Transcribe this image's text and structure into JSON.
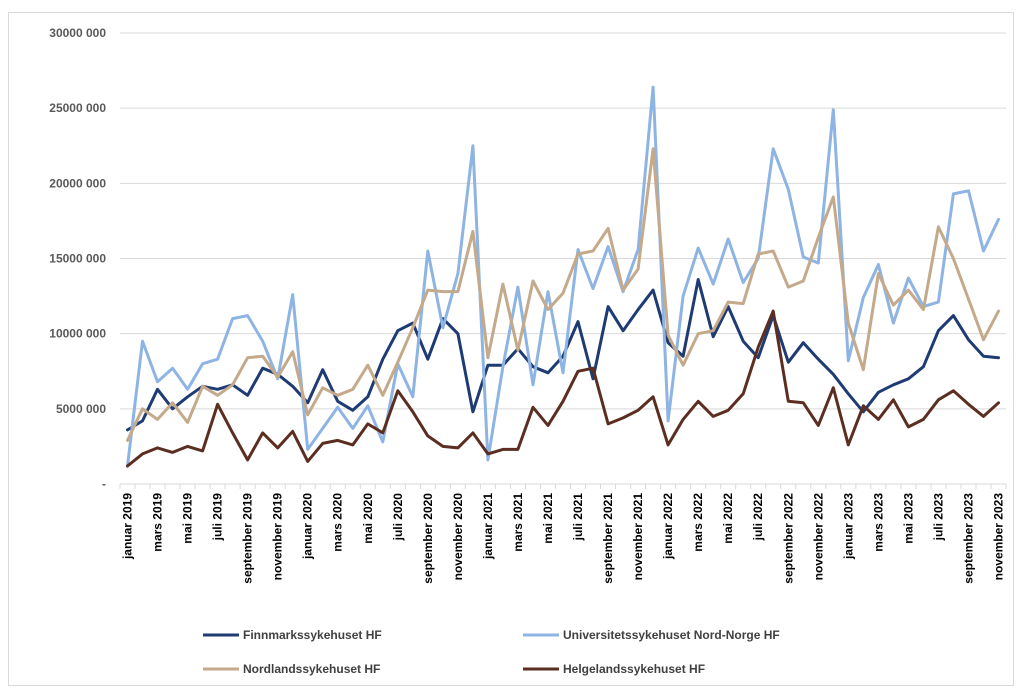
{
  "chart_data": {
    "type": "line",
    "title": "",
    "xlabel": "",
    "ylabel": "",
    "ylim": [
      0,
      30000000
    ],
    "yticks": [
      {
        "value": 0,
        "label": "-"
      },
      {
        "value": 5000000,
        "label": "5000 000"
      },
      {
        "value": 10000000,
        "label": "10000 000"
      },
      {
        "value": 15000000,
        "label": "15000 000"
      },
      {
        "value": 20000000,
        "label": "20000 000"
      },
      {
        "value": 25000000,
        "label": "25000 000"
      },
      {
        "value": 30000000,
        "label": "30000 000"
      }
    ],
    "grid": "horizontal",
    "legend_position": "bottom",
    "x": [
      "januar 2019",
      "februar 2019",
      "mars 2019",
      "april 2019",
      "mai 2019",
      "juni 2019",
      "juli 2019",
      "august 2019",
      "september 2019",
      "oktober 2019",
      "november 2019",
      "desember 2019",
      "januar 2020",
      "februar 2020",
      "mars 2020",
      "april 2020",
      "mai 2020",
      "juni 2020",
      "juli 2020",
      "august 2020",
      "september 2020",
      "oktober 2020",
      "november 2020",
      "desember 2020",
      "januar 2021",
      "februar 2021",
      "mars 2021",
      "april 2021",
      "mai 2021",
      "juni 2021",
      "juli 2021",
      "august 2021",
      "september 2021",
      "oktober 2021",
      "november 2021",
      "desember 2021",
      "januar 2022",
      "februar 2022",
      "mars 2022",
      "april 2022",
      "mai 2022",
      "juni 2022",
      "juli 2022",
      "august 2022",
      "september 2022",
      "oktober 2022",
      "november 2022",
      "desember 2022",
      "januar 2023",
      "februar 2023",
      "mars 2023",
      "april 2023",
      "mai 2023",
      "juni 2023",
      "juli 2023",
      "august 2023",
      "september 2023",
      "oktober 2023",
      "november 2023"
    ],
    "x_tick_labels": [
      "januar 2019",
      "mars 2019",
      "mai 2019",
      "juli 2019",
      "september 2019",
      "november 2019",
      "januar 2020",
      "mars 2020",
      "mai 2020",
      "juli 2020",
      "september 2020",
      "november 2020",
      "januar 2021",
      "mars 2021",
      "mai 2021",
      "juli 2021",
      "september 2021",
      "november 2021",
      "januar 2022",
      "mars 2022",
      "mai 2022",
      "juli 2022",
      "september 2022",
      "november 2022",
      "januar 2023",
      "mars 2023",
      "mai 2023",
      "juli 2023",
      "september 2023",
      "november 2023"
    ],
    "series": [
      {
        "name": "Finnmarkssykehuset HF",
        "color": "#1f3b73",
        "values": [
          3600000,
          4200000,
          6300000,
          5000000,
          5800000,
          6500000,
          6300000,
          6600000,
          5900000,
          7700000,
          7300000,
          6500000,
          5400000,
          7600000,
          5500000,
          4900000,
          5800000,
          8300000,
          10200000,
          10700000,
          8300000,
          11000000,
          10000000,
          4800000,
          7900000,
          7900000,
          9000000,
          7800000,
          7400000,
          8500000,
          10800000,
          7000000,
          11800000,
          10200000,
          11600000,
          12900000,
          9400000,
          8500000,
          13600000,
          9800000,
          11800000,
          9500000,
          8400000,
          11200000,
          8100000,
          9400000,
          8300000,
          7300000,
          6000000,
          4800000,
          6100000,
          6600000,
          7000000,
          7800000,
          10200000,
          11200000,
          9600000,
          8500000,
          8400000
        ]
      },
      {
        "name": "Universitetssykehuset Nord-Norge HF",
        "color": "#8eb4e3",
        "values": [
          1200000,
          9500000,
          6800000,
          7700000,
          6300000,
          8000000,
          8300000,
          11000000,
          11200000,
          9500000,
          7000000,
          12600000,
          2300000,
          3700000,
          5100000,
          3700000,
          5200000,
          2800000,
          8000000,
          5800000,
          15500000,
          10400000,
          14000000,
          22500000,
          1600000,
          7800000,
          13100000,
          6600000,
          12800000,
          7400000,
          15600000,
          13000000,
          15800000,
          12800000,
          15600000,
          26400000,
          4200000,
          12500000,
          15700000,
          13300000,
          16300000,
          13400000,
          15000000,
          22300000,
          19600000,
          15100000,
          14700000,
          24900000,
          8200000,
          12400000,
          14600000,
          10700000,
          13700000,
          11800000,
          12100000,
          19300000,
          19500000,
          15500000,
          17600000
        ]
      },
      {
        "name": "Nordlandssykehuset HF",
        "color": "#c4a98a",
        "values": [
          2900000,
          5000000,
          4300000,
          5400000,
          4100000,
          6500000,
          5900000,
          6600000,
          8400000,
          8500000,
          7100000,
          8800000,
          4600000,
          6400000,
          5900000,
          6300000,
          7900000,
          5900000,
          8100000,
          10400000,
          12900000,
          12800000,
          12800000,
          16800000,
          8400000,
          13300000,
          8900000,
          13500000,
          11600000,
          12700000,
          15300000,
          15500000,
          17000000,
          12900000,
          14300000,
          22300000,
          9900000,
          7900000,
          10000000,
          10200000,
          12100000,
          12000000,
          15300000,
          15500000,
          13100000,
          13500000,
          16400000,
          19100000,
          10700000,
          7600000,
          14000000,
          11900000,
          12900000,
          11600000,
          17100000,
          15000000,
          12300000,
          9600000,
          11500000
        ]
      },
      {
        "name": "Helgelandssykehuset HF",
        "color": "#5c2e22",
        "values": [
          1200000,
          2000000,
          2400000,
          2100000,
          2500000,
          2200000,
          5300000,
          3400000,
          1600000,
          3400000,
          2400000,
          3500000,
          1500000,
          2700000,
          2900000,
          2600000,
          4000000,
          3400000,
          6200000,
          4800000,
          3200000,
          2500000,
          2400000,
          3400000,
          2000000,
          2300000,
          2300000,
          5100000,
          3900000,
          5500000,
          7500000,
          7700000,
          4000000,
          4400000,
          4900000,
          5800000,
          2600000,
          4300000,
          5500000,
          4500000,
          4900000,
          6000000,
          9100000,
          11500000,
          5500000,
          5400000,
          3900000,
          6400000,
          2600000,
          5200000,
          4300000,
          5600000,
          3800000,
          4300000,
          5600000,
          6200000,
          5300000,
          4500000,
          5400000
        ]
      }
    ]
  }
}
